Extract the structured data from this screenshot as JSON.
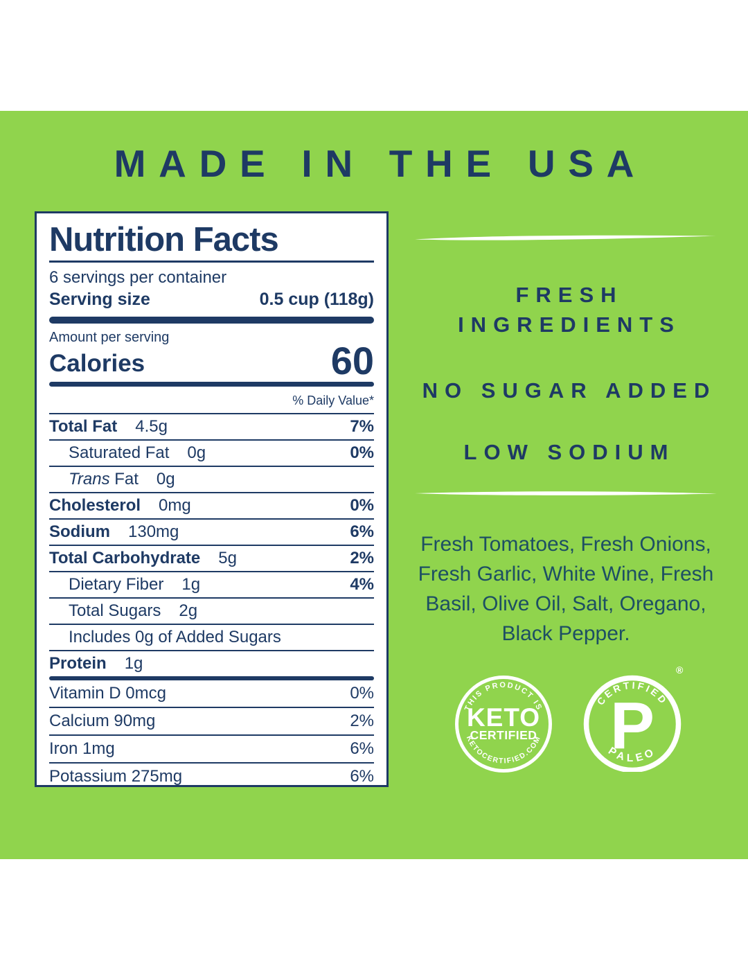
{
  "colors": {
    "green": "#90d44d",
    "navy": "#1e3a64",
    "ingredients_ink": "#1d4f63",
    "white": "#ffffff"
  },
  "header": {
    "title": "MADE IN THE USA"
  },
  "nutrition": {
    "title": "Nutrition Facts",
    "servings_per_container": "6 servings per container",
    "serving_size_label": "Serving size",
    "serving_size_value": "0.5 cup (118g)",
    "amount_per_serving": "Amount per serving",
    "calories_label": "Calories",
    "calories_value": "60",
    "daily_value_header": "% Daily Value*",
    "rows": [
      {
        "label": "Total Fat",
        "value": "4.5g",
        "dv": "7%",
        "bold": true,
        "indent": 0
      },
      {
        "label": "Saturated Fat",
        "value": "0g",
        "dv": "0%",
        "bold": false,
        "indent": 1
      },
      {
        "label": "Trans Fat",
        "italic_prefix": "Trans",
        "label_rest": "Fat",
        "value": "0g",
        "dv": "",
        "bold": false,
        "indent": 1
      },
      {
        "label": "Cholesterol",
        "value": "0mg",
        "dv": "0%",
        "bold": true,
        "indent": 0
      },
      {
        "label": "Sodium",
        "value": "130mg",
        "dv": "6%",
        "bold": true,
        "indent": 0
      },
      {
        "label": "Total Carbohydrate",
        "value": "5g",
        "dv": "2%",
        "bold": true,
        "indent": 0
      },
      {
        "label": "Dietary Fiber",
        "value": "1g",
        "dv": "4%",
        "bold": false,
        "indent": 1
      },
      {
        "label": "Total Sugars",
        "value": "2g",
        "dv": "",
        "bold": false,
        "indent": 1
      },
      {
        "label": "Includes 0g of Added Sugars",
        "value": "",
        "dv": "",
        "bold": false,
        "indent": 1
      },
      {
        "label": "Protein",
        "value": "1g",
        "dv": "",
        "bold": true,
        "indent": 0
      }
    ],
    "micronutrients": [
      {
        "label": "Vitamin D 0mcg",
        "dv": "0%"
      },
      {
        "label": "Calcium 90mg",
        "dv": "2%"
      },
      {
        "label": "Iron 1mg",
        "dv": "6%"
      },
      {
        "label": "Potassium 275mg",
        "dv": "6%"
      }
    ]
  },
  "claims": {
    "fresh_line1": "FRESH",
    "fresh_line2": "INGREDIENTS",
    "no_sugar_added": "NO SUGAR ADDED",
    "low_sodium": "LOW SODIUM"
  },
  "ingredients_lines": [
    "Fresh Tomatoes, Fresh Onions,",
    "Fresh Garlic, White Wine, Fresh",
    "Basil, Olive Oil, Salt, Oregano,",
    "Black Pepper."
  ],
  "badges": {
    "keto": {
      "arc_top": "THIS PRODUCT IS",
      "name": "KETO",
      "subtitle": "CERTIFIED",
      "arc_bottom": "KETOCERTIFIED.COM"
    },
    "paleo": {
      "arc_top": "CERTIFIED",
      "letter": "P",
      "arc_bottom": "PALEO",
      "registered": "®"
    }
  }
}
